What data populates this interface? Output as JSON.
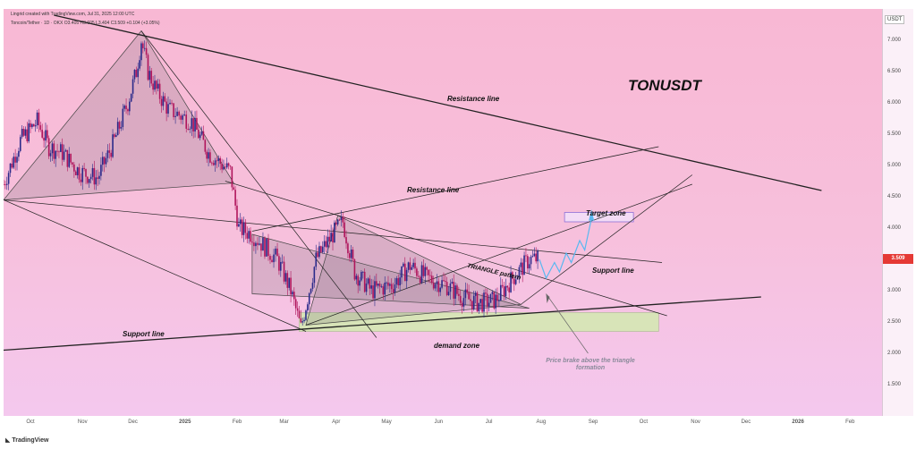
{
  "header": {
    "creator": "Lingrid created with TradingView.com, Jul 31, 2025 12:00 UTC",
    "symbol_line": "Toncoin/Tether · 1D · OKX  O3.405  H3.605  L3.404  C3.509  +0.104 (+3.05%)"
  },
  "ticker": "TONUSDT",
  "currency": "USDT",
  "last_price": "3.509",
  "footer_logo": "TradingView",
  "annotations": {
    "resistance_top": "Resistance line",
    "resistance_mid": "Resistance line",
    "target_zone": "Target zone",
    "triangle": "TRIANGLE pattern",
    "support_right": "Support line",
    "support_left": "Support line",
    "demand_zone": "demand zone",
    "note": "Price brake above the triangle formation"
  },
  "colors": {
    "bull": "#2a2a8a",
    "bear": "#b0155c",
    "zone": "#d8e4b8",
    "target": "#8e6fd6",
    "projection": "#5ab8f0",
    "last_price": "#e53935"
  },
  "chart_data": {
    "type": "candlestick",
    "title": "TONUSDT",
    "ylabel": "USDT",
    "ylim": [
      1.0,
      7.5
    ],
    "y_ticks": [
      "7.000",
      "6.500",
      "6.000",
      "5.500",
      "5.000",
      "4.500",
      "4.000",
      "3.500",
      "3.000",
      "2.500",
      "2.000",
      "1.500"
    ],
    "x_ticks": [
      "Oct",
      "Nov",
      "Dec",
      "2025",
      "Feb",
      "Mar",
      "Apr",
      "May",
      "Jun",
      "Jul",
      "Aug",
      "Sep",
      "Oct",
      "Nov",
      "Dec",
      "2026",
      "Feb"
    ],
    "price_path": [
      [
        "2024-09-15",
        4.7
      ],
      [
        "2024-09-25",
        5.4
      ],
      [
        "2024-10-05",
        5.7
      ],
      [
        "2024-10-12",
        5.3
      ],
      [
        "2024-10-20",
        5.2
      ],
      [
        "2024-10-30",
        4.9
      ],
      [
        "2024-11-10",
        4.8
      ],
      [
        "2024-11-20",
        5.4
      ],
      [
        "2024-11-28",
        6.0
      ],
      [
        "2024-12-03",
        6.5
      ],
      [
        "2024-12-06",
        7.0
      ],
      [
        "2024-12-10",
        6.5
      ],
      [
        "2024-12-15",
        6.2
      ],
      [
        "2024-12-22",
        5.9
      ],
      [
        "2025-01-05",
        5.7
      ],
      [
        "2025-01-15",
        5.2
      ],
      [
        "2025-01-28",
        4.9
      ],
      [
        "2025-02-02",
        4.0
      ],
      [
        "2025-02-10",
        3.9
      ],
      [
        "2025-02-25",
        3.5
      ],
      [
        "2025-03-05",
        3.0
      ],
      [
        "2025-03-11",
        2.4
      ],
      [
        "2025-03-20",
        3.5
      ],
      [
        "2025-03-30",
        3.9
      ],
      [
        "2025-04-05",
        4.1
      ],
      [
        "2025-04-12",
        3.3
      ],
      [
        "2025-04-22",
        3.0
      ],
      [
        "2025-05-05",
        3.1
      ],
      [
        "2025-05-15",
        3.4
      ],
      [
        "2025-05-25",
        3.2
      ],
      [
        "2025-06-05",
        3.1
      ],
      [
        "2025-06-15",
        2.9
      ],
      [
        "2025-06-25",
        2.8
      ],
      [
        "2025-07-05",
        2.85
      ],
      [
        "2025-07-15",
        3.2
      ],
      [
        "2025-07-25",
        3.5
      ],
      [
        "2025-07-31",
        3.509
      ]
    ],
    "lines": {
      "resistance_top": [
        [
          "2024-10-15",
          7.4
        ],
        [
          "2026-01-15",
          4.6
        ]
      ],
      "resistance_mid": [
        [
          "2025-02-10",
          3.95
        ],
        [
          "2025-10-10",
          5.3
        ]
      ],
      "support_line": [
        [
          "2024-09-15",
          2.05
        ],
        [
          "2025-12-10",
          2.9
        ]
      ]
    },
    "zones": {
      "demand_zone": {
        "from": "2025-03-10",
        "to": "2025-10-10",
        "low": 2.35,
        "high": 2.65
      },
      "target_zone": {
        "from": "2025-08-15",
        "to": "2025-09-25",
        "low": 4.1,
        "high": 4.25
      }
    }
  }
}
